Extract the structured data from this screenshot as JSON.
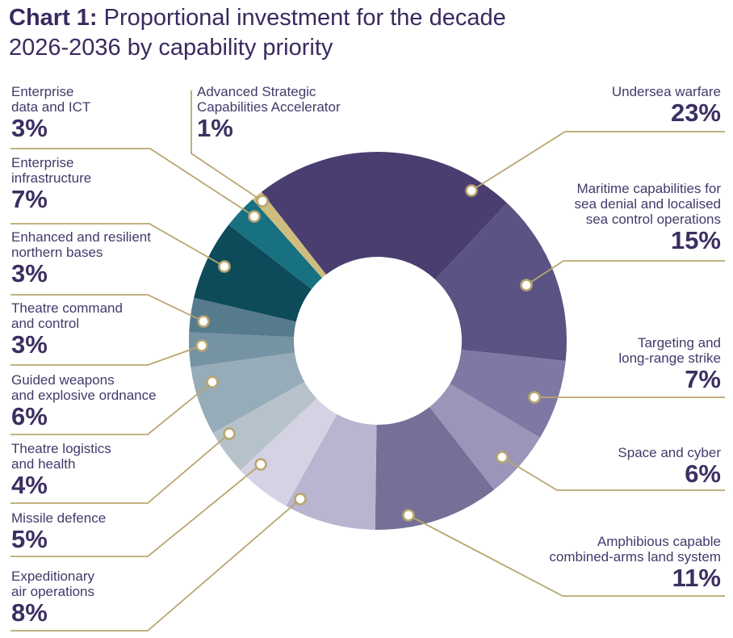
{
  "title": {
    "prefix": "Chart 1:",
    "line1_rest": " Proportional investment for the decade",
    "line2": "2026-2036 by capability priority"
  },
  "chart_data": {
    "type": "pie",
    "variant": "donut",
    "title": "Chart 1: Proportional investment for the decade 2026-2036 by capability priority",
    "unit": "percent",
    "start_angle_deg_from_top": -38,
    "direction": "clockwise",
    "legend_position": "callout-labels",
    "leader_line_color": "#b9a66f",
    "label_text_color": "#45386b",
    "pct_text_color": "#3c2f62",
    "title_color": "#3a2a5e",
    "slices": [
      {
        "id": "undersea-warfare",
        "label_lines": [
          "Undersea warfare"
        ],
        "value": 23,
        "display": "23%",
        "color": "#4a3e71"
      },
      {
        "id": "maritime-capabilities",
        "label_lines": [
          "Maritime capabilities for",
          "sea denial and localised",
          "sea control operations"
        ],
        "value": 15,
        "display": "15%",
        "color": "#5b5383"
      },
      {
        "id": "targeting-long-range-strike",
        "label_lines": [
          "Targeting and",
          "long-range strike"
        ],
        "value": 7,
        "display": "7%",
        "color": "#7e78a4"
      },
      {
        "id": "space-and-cyber",
        "label_lines": [
          "Space and cyber"
        ],
        "value": 6,
        "display": "6%",
        "color": "#9b95b9"
      },
      {
        "id": "amphibious-land-system",
        "label_lines": [
          "Amphibious capable",
          "combined-arms land system"
        ],
        "value": 11,
        "display": "11%",
        "color": "#767098"
      },
      {
        "id": "expeditionary-air-operations",
        "label_lines": [
          "Expeditionary",
          "air operations"
        ],
        "value": 8,
        "display": "8%",
        "color": "#b9b4cf"
      },
      {
        "id": "missile-defence",
        "label_lines": [
          "Missile defence"
        ],
        "value": 5,
        "display": "5%",
        "color": "#d4d2e3"
      },
      {
        "id": "theatre-logistics-health",
        "label_lines": [
          "Theatre logistics",
          "and health"
        ],
        "value": 4,
        "display": "4%",
        "color": "#b6c2ca"
      },
      {
        "id": "guided-weapons-ordnance",
        "label_lines": [
          "Guided weapons",
          "and explosive ordnance"
        ],
        "value": 6,
        "display": "6%",
        "color": "#96acb8"
      },
      {
        "id": "theatre-command-control",
        "label_lines": [
          "Theatre command",
          "and control"
        ],
        "value": 3,
        "display": "3%",
        "color": "#7593a3"
      },
      {
        "id": "northern-bases",
        "label_lines": [
          "Enhanced and resilient",
          "northern bases"
        ],
        "value": 3,
        "display": "3%",
        "color": "#567b8c"
      },
      {
        "id": "enterprise-infrastructure",
        "label_lines": [
          "Enterprise",
          "infrastructure"
        ],
        "value": 7,
        "display": "7%",
        "color": "#0d4a5a"
      },
      {
        "id": "enterprise-data-ict",
        "label_lines": [
          "Enterprise",
          "data and ICT"
        ],
        "value": 3,
        "display": "3%",
        "color": "#187181"
      },
      {
        "id": "advanced-strategic-capabilities-accelerator",
        "label_lines": [
          "Advanced Strategic",
          "Capabilities Accelerator"
        ],
        "value": 1,
        "display": "1%",
        "color": "#cebd7f"
      }
    ]
  }
}
